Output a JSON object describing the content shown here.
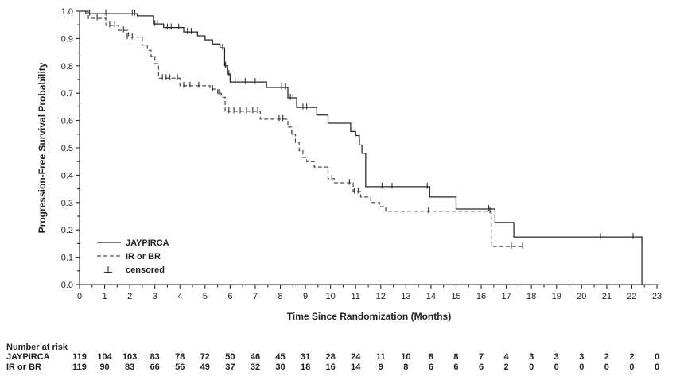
{
  "chart_data": {
    "type": "line",
    "subtype": "kaplan-meier-step",
    "title": "",
    "xlabel": "Time Since Randomization (Months)",
    "ylabel": "Progression-Free Survival Probability",
    "xlim": [
      0,
      23
    ],
    "ylim": [
      0.0,
      1.0
    ],
    "x_ticks": [
      0,
      1,
      2,
      3,
      4,
      5,
      6,
      7,
      8,
      9,
      10,
      11,
      12,
      13,
      14,
      15,
      16,
      17,
      18,
      19,
      20,
      21,
      22,
      23
    ],
    "y_ticks": [
      "0.0",
      "0.1",
      "0.2",
      "0.3",
      "0.4",
      "0.5",
      "0.6",
      "0.7",
      "0.8",
      "0.9",
      "1.0"
    ],
    "x_minor_tick_step": 0.5,
    "y_minor_tick_step": 0.05,
    "grid": false,
    "colors": {
      "line": "#262626",
      "dashed_line": "#4f4f4f",
      "text": "#231f20",
      "background": "#ffffff"
    },
    "legend": {
      "position": "inside-lower-left",
      "entries": [
        {
          "label": "JAYPIRCA",
          "style": "solid"
        },
        {
          "label": "IR or BR",
          "style": "dashed"
        },
        {
          "label": "censored",
          "style": "censor"
        }
      ]
    },
    "series": [
      {
        "name": "JAYPIRCA",
        "line_style": "solid",
        "end_time": 22.4,
        "steps": [
          [
            0,
            1.0
          ],
          [
            0.25,
            0.991
          ],
          [
            2.3,
            0.983
          ],
          [
            2.95,
            0.953
          ],
          [
            3.35,
            0.94
          ],
          [
            4.15,
            0.924
          ],
          [
            4.7,
            0.91
          ],
          [
            5.0,
            0.895
          ],
          [
            5.3,
            0.88
          ],
          [
            5.6,
            0.866
          ],
          [
            5.78,
            0.8
          ],
          [
            5.9,
            0.77
          ],
          [
            6.0,
            0.741
          ],
          [
            7.45,
            0.721
          ],
          [
            8.3,
            0.683
          ],
          [
            8.65,
            0.648
          ],
          [
            9.45,
            0.62
          ],
          [
            9.9,
            0.59
          ],
          [
            10.8,
            0.56
          ],
          [
            11.0,
            0.545
          ],
          [
            11.15,
            0.51
          ],
          [
            11.25,
            0.48
          ],
          [
            11.4,
            0.358
          ],
          [
            13.95,
            0.32
          ],
          [
            15.0,
            0.276
          ],
          [
            16.55,
            0.227
          ],
          [
            17.3,
            0.174
          ],
          [
            22.4,
            0.0
          ]
        ],
        "censored": [
          [
            0.4,
            0.991
          ],
          [
            1.05,
            0.991
          ],
          [
            2.1,
            0.991
          ],
          [
            2.2,
            0.991
          ],
          [
            3.0,
            0.953
          ],
          [
            3.1,
            0.953
          ],
          [
            3.5,
            0.94
          ],
          [
            3.65,
            0.94
          ],
          [
            3.95,
            0.94
          ],
          [
            4.3,
            0.924
          ],
          [
            4.45,
            0.924
          ],
          [
            5.7,
            0.866
          ],
          [
            5.82,
            0.8
          ],
          [
            5.95,
            0.77
          ],
          [
            6.2,
            0.741
          ],
          [
            6.35,
            0.741
          ],
          [
            6.6,
            0.741
          ],
          [
            7.0,
            0.741
          ],
          [
            8.05,
            0.721
          ],
          [
            8.2,
            0.721
          ],
          [
            8.4,
            0.683
          ],
          [
            8.5,
            0.683
          ],
          [
            8.9,
            0.648
          ],
          [
            9.05,
            0.648
          ],
          [
            10.85,
            0.56
          ],
          [
            12.05,
            0.358
          ],
          [
            12.45,
            0.358
          ],
          [
            13.85,
            0.358
          ],
          [
            16.3,
            0.276
          ],
          [
            20.75,
            0.174
          ],
          [
            22.05,
            0.174
          ]
        ]
      },
      {
        "name": "IR or BR",
        "line_style": "dashed",
        "end_time": 17.65,
        "steps": [
          [
            0,
            1.0
          ],
          [
            0.35,
            0.974
          ],
          [
            1.05,
            0.948
          ],
          [
            1.55,
            0.93
          ],
          [
            1.95,
            0.905
          ],
          [
            2.5,
            0.876
          ],
          [
            2.7,
            0.857
          ],
          [
            2.85,
            0.833
          ],
          [
            3.0,
            0.808
          ],
          [
            3.15,
            0.755
          ],
          [
            4.0,
            0.727
          ],
          [
            5.2,
            0.715
          ],
          [
            5.5,
            0.7
          ],
          [
            5.65,
            0.685
          ],
          [
            5.8,
            0.634
          ],
          [
            7.2,
            0.605
          ],
          [
            8.3,
            0.576
          ],
          [
            8.45,
            0.55
          ],
          [
            8.6,
            0.52
          ],
          [
            8.75,
            0.49
          ],
          [
            8.9,
            0.465
          ],
          [
            9.05,
            0.45
          ],
          [
            9.35,
            0.43
          ],
          [
            9.9,
            0.387
          ],
          [
            10.15,
            0.372
          ],
          [
            10.9,
            0.34
          ],
          [
            11.2,
            0.32
          ],
          [
            11.6,
            0.3
          ],
          [
            11.95,
            0.285
          ],
          [
            12.2,
            0.268
          ],
          [
            16.4,
            0.139
          ]
        ],
        "censored": [
          [
            0.7,
            0.974
          ],
          [
            1.2,
            0.948
          ],
          [
            1.4,
            0.948
          ],
          [
            1.75,
            0.93
          ],
          [
            1.9,
            0.905
          ],
          [
            2.1,
            0.905
          ],
          [
            3.3,
            0.755
          ],
          [
            3.45,
            0.755
          ],
          [
            3.6,
            0.755
          ],
          [
            3.9,
            0.755
          ],
          [
            4.15,
            0.727
          ],
          [
            4.4,
            0.727
          ],
          [
            4.75,
            0.727
          ],
          [
            5.3,
            0.715
          ],
          [
            5.55,
            0.7
          ],
          [
            5.95,
            0.634
          ],
          [
            6.15,
            0.634
          ],
          [
            6.4,
            0.634
          ],
          [
            6.65,
            0.634
          ],
          [
            6.9,
            0.634
          ],
          [
            7.1,
            0.634
          ],
          [
            7.95,
            0.605
          ],
          [
            8.1,
            0.605
          ],
          [
            8.5,
            0.55
          ],
          [
            10.05,
            0.387
          ],
          [
            10.75,
            0.372
          ],
          [
            10.95,
            0.34
          ],
          [
            11.1,
            0.34
          ],
          [
            13.9,
            0.268
          ],
          [
            16.35,
            0.268
          ],
          [
            17.2,
            0.139
          ],
          [
            17.65,
            0.139
          ]
        ]
      }
    ]
  },
  "risk_table": {
    "header": "Number at risk",
    "months": [
      0,
      1,
      2,
      3,
      4,
      5,
      6,
      7,
      8,
      9,
      10,
      11,
      12,
      13,
      14,
      15,
      16,
      17,
      18,
      19,
      20,
      21,
      22,
      23
    ],
    "rows": [
      {
        "label": "JAYPIRCA",
        "counts": [
          119,
          104,
          103,
          83,
          78,
          72,
          50,
          46,
          45,
          31,
          28,
          24,
          11,
          10,
          8,
          8,
          7,
          4,
          3,
          3,
          3,
          2,
          2,
          0
        ]
      },
      {
        "label": "IR or BR",
        "counts": [
          119,
          90,
          83,
          66,
          56,
          49,
          37,
          32,
          30,
          18,
          16,
          14,
          9,
          8,
          6,
          6,
          6,
          2,
          0,
          0,
          0,
          0,
          0,
          0
        ]
      }
    ]
  }
}
